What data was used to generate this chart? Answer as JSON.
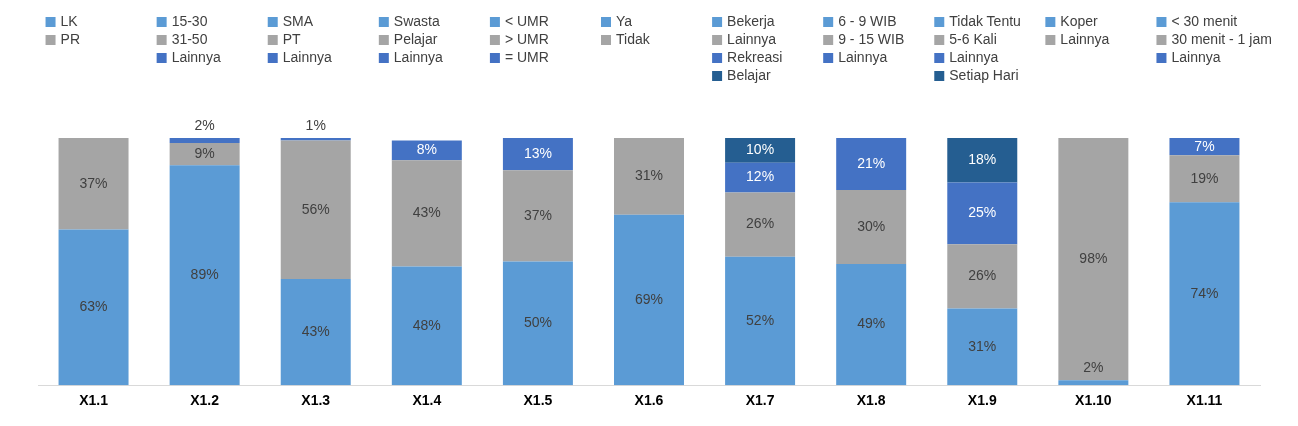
{
  "chart_data": {
    "type": "bar",
    "stacked": true,
    "legend": "top",
    "grid": false,
    "tick_labels": "x",
    "categories": [
      "X1.1",
      "X1.2",
      "X1.3",
      "X1.4",
      "X1.5",
      "X1.6",
      "X1.7",
      "X1.8",
      "X1.9",
      "X1.10",
      "X1.11"
    ],
    "series": [
      {
        "name": "LK",
        "color": "#5b9bd5",
        "values": [
          63,
          null,
          null,
          null,
          null,
          null,
          null,
          null,
          null,
          null,
          null
        ],
        "value_labels": [
          "63%",
          null,
          null,
          null,
          null,
          null,
          null,
          null,
          null,
          null,
          null
        ]
      },
      {
        "name": "PR",
        "color": "#a5a5a5",
        "values": [
          37,
          null,
          null,
          null,
          null,
          null,
          null,
          null,
          null,
          null,
          null
        ],
        "value_labels": [
          "37%",
          null,
          null,
          null,
          null,
          null,
          null,
          null,
          null,
          null,
          null
        ]
      },
      {
        "name": "15-30",
        "color": "#5b9bd5",
        "values": [
          null,
          89,
          null,
          null,
          null,
          null,
          null,
          null,
          null,
          null,
          null
        ],
        "value_labels": [
          null,
          "89%",
          null,
          null,
          null,
          null,
          null,
          null,
          null,
          null,
          null
        ]
      },
      {
        "name": "31-50",
        "color": "#a5a5a5",
        "values": [
          null,
          9,
          null,
          null,
          null,
          null,
          null,
          null,
          null,
          null,
          null
        ],
        "value_labels": [
          null,
          "9%",
          null,
          null,
          null,
          null,
          null,
          null,
          null,
          null,
          null
        ]
      },
      {
        "name": "Lainnya",
        "color": "#4472c4",
        "values": [
          null,
          2,
          null,
          null,
          null,
          null,
          null,
          null,
          null,
          null,
          null
        ],
        "value_labels": [
          null,
          "2%",
          null,
          null,
          null,
          null,
          null,
          null,
          null,
          null,
          null
        ]
      },
      {
        "name": "SMA",
        "color": "#5b9bd5",
        "values": [
          null,
          null,
          43,
          null,
          null,
          null,
          null,
          null,
          null,
          null,
          null
        ],
        "value_labels": [
          null,
          null,
          "43%",
          null,
          null,
          null,
          null,
          null,
          null,
          null,
          null
        ]
      },
      {
        "name": "PT",
        "color": "#a5a5a5",
        "values": [
          null,
          null,
          56,
          null,
          null,
          null,
          null,
          null,
          null,
          null,
          null
        ],
        "value_labels": [
          null,
          null,
          "56%",
          null,
          null,
          null,
          null,
          null,
          null,
          null,
          null
        ]
      },
      {
        "name": "Lainnya",
        "color": "#4472c4",
        "values": [
          null,
          null,
          1,
          null,
          null,
          null,
          null,
          null,
          null,
          null,
          null
        ],
        "value_labels": [
          null,
          null,
          "1%",
          null,
          null,
          null,
          null,
          null,
          null,
          null,
          null
        ]
      },
      {
        "name": "Swasta",
        "color": "#5b9bd5",
        "values": [
          null,
          null,
          null,
          48,
          null,
          null,
          null,
          null,
          null,
          null,
          null
        ],
        "value_labels": [
          null,
          null,
          null,
          "48%",
          null,
          null,
          null,
          null,
          null,
          null,
          null
        ]
      },
      {
        "name": "Pelajar",
        "color": "#a5a5a5",
        "values": [
          null,
          null,
          null,
          43,
          null,
          null,
          null,
          null,
          null,
          null,
          null
        ],
        "value_labels": [
          null,
          null,
          null,
          "43%",
          null,
          null,
          null,
          null,
          null,
          null,
          null
        ]
      },
      {
        "name": "Lainnya",
        "color": "#4472c4",
        "values": [
          null,
          null,
          null,
          8,
          null,
          null,
          null,
          null,
          null,
          null,
          null
        ],
        "value_labels": [
          null,
          null,
          null,
          "8%",
          null,
          null,
          null,
          null,
          null,
          null,
          null
        ]
      },
      {
        "name": "< UMR",
        "color": "#5b9bd5",
        "values": [
          null,
          null,
          null,
          null,
          50,
          null,
          null,
          null,
          null,
          null,
          null
        ],
        "value_labels": [
          null,
          null,
          null,
          null,
          "50%",
          null,
          null,
          null,
          null,
          null,
          null
        ]
      },
      {
        "name": "> UMR",
        "color": "#a5a5a5",
        "values": [
          null,
          null,
          null,
          null,
          37,
          null,
          null,
          null,
          null,
          null,
          null
        ],
        "value_labels": [
          null,
          null,
          null,
          null,
          "37%",
          null,
          null,
          null,
          null,
          null,
          null
        ]
      },
      {
        "name": "= UMR",
        "color": "#4472c4",
        "values": [
          null,
          null,
          null,
          null,
          13,
          null,
          null,
          null,
          null,
          null,
          null
        ],
        "value_labels": [
          null,
          null,
          null,
          null,
          "13%",
          null,
          null,
          null,
          null,
          null,
          null
        ]
      },
      {
        "name": "Ya",
        "color": "#5b9bd5",
        "values": [
          null,
          null,
          null,
          null,
          null,
          69,
          null,
          null,
          null,
          null,
          null
        ],
        "value_labels": [
          null,
          null,
          null,
          null,
          null,
          "69%",
          null,
          null,
          null,
          null,
          null
        ]
      },
      {
        "name": "Tidak",
        "color": "#a5a5a5",
        "values": [
          null,
          null,
          null,
          null,
          null,
          31,
          null,
          null,
          null,
          null,
          null
        ],
        "value_labels": [
          null,
          null,
          null,
          null,
          null,
          "31%",
          null,
          null,
          null,
          null,
          null
        ]
      },
      {
        "name": "Bekerja",
        "color": "#5b9bd5",
        "values": [
          null,
          null,
          null,
          null,
          null,
          null,
          52,
          null,
          null,
          null,
          null
        ],
        "value_labels": [
          null,
          null,
          null,
          null,
          null,
          null,
          "52%",
          null,
          null,
          null,
          null
        ]
      },
      {
        "name": "Lainnya",
        "color": "#a5a5a5",
        "values": [
          null,
          null,
          null,
          null,
          null,
          null,
          26,
          null,
          null,
          null,
          null
        ],
        "value_labels": [
          null,
          null,
          null,
          null,
          null,
          null,
          "26%",
          null,
          null,
          null,
          null
        ]
      },
      {
        "name": "Rekreasi",
        "color": "#4472c4",
        "values": [
          null,
          null,
          null,
          null,
          null,
          null,
          12,
          null,
          null,
          null,
          null
        ],
        "value_labels": [
          null,
          null,
          null,
          null,
          null,
          null,
          "12%",
          null,
          null,
          null,
          null
        ]
      },
      {
        "name": "Belajar",
        "color": "#255e91",
        "values": [
          null,
          null,
          null,
          null,
          null,
          null,
          10,
          null,
          null,
          null,
          null
        ],
        "value_labels": [
          null,
          null,
          null,
          null,
          null,
          null,
          "10%",
          null,
          null,
          null,
          null
        ]
      },
      {
        "name": "6 - 9 WIB",
        "color": "#5b9bd5",
        "values": [
          null,
          null,
          null,
          null,
          null,
          null,
          null,
          49,
          null,
          null,
          null
        ],
        "value_labels": [
          null,
          null,
          null,
          null,
          null,
          null,
          null,
          "49%",
          null,
          null,
          null
        ]
      },
      {
        "name": "9 - 15 WIB",
        "color": "#a5a5a5",
        "values": [
          null,
          null,
          null,
          null,
          null,
          null,
          null,
          30,
          null,
          null,
          null
        ],
        "value_labels": [
          null,
          null,
          null,
          null,
          null,
          null,
          null,
          "30%",
          null,
          null,
          null
        ]
      },
      {
        "name": "Lainnya",
        "color": "#4472c4",
        "values": [
          null,
          null,
          null,
          null,
          null,
          null,
          null,
          21,
          null,
          null,
          null
        ],
        "value_labels": [
          null,
          null,
          null,
          null,
          null,
          null,
          null,
          "21%",
          null,
          null,
          null
        ]
      },
      {
        "name": "Tidak Tentu",
        "color": "#5b9bd5",
        "values": [
          null,
          null,
          null,
          null,
          null,
          null,
          null,
          null,
          31,
          null,
          null
        ],
        "value_labels": [
          null,
          null,
          null,
          null,
          null,
          null,
          null,
          null,
          "31%",
          null,
          null
        ]
      },
      {
        "name": "5-6 Kali",
        "color": "#a5a5a5",
        "values": [
          null,
          null,
          null,
          null,
          null,
          null,
          null,
          null,
          26,
          null,
          null
        ],
        "value_labels": [
          null,
          null,
          null,
          null,
          null,
          null,
          null,
          null,
          "26%",
          null,
          null
        ]
      },
      {
        "name": "Lainnya",
        "color": "#4472c4",
        "values": [
          null,
          null,
          null,
          null,
          null,
          null,
          null,
          null,
          25,
          null,
          null
        ],
        "value_labels": [
          null,
          null,
          null,
          null,
          null,
          null,
          null,
          null,
          "25%",
          null,
          null
        ]
      },
      {
        "name": "Setiap Hari",
        "color": "#255e91",
        "values": [
          null,
          null,
          null,
          null,
          null,
          null,
          null,
          null,
          18,
          null,
          null
        ],
        "value_labels": [
          null,
          null,
          null,
          null,
          null,
          null,
          null,
          null,
          "18%",
          null,
          null
        ]
      },
      {
        "name": "Koper",
        "color": "#5b9bd5",
        "values": [
          null,
          null,
          null,
          null,
          null,
          null,
          null,
          null,
          null,
          2,
          null
        ],
        "value_labels": [
          null,
          null,
          null,
          null,
          null,
          null,
          null,
          null,
          null,
          "2%",
          null
        ]
      },
      {
        "name": "Lainnya",
        "color": "#a5a5a5",
        "values": [
          null,
          null,
          null,
          null,
          null,
          null,
          null,
          null,
          null,
          98,
          null
        ],
        "value_labels": [
          null,
          null,
          null,
          null,
          null,
          null,
          null,
          null,
          null,
          "98%",
          null
        ]
      },
      {
        "name": "< 30 menit",
        "color": "#5b9bd5",
        "values": [
          null,
          null,
          null,
          null,
          null,
          null,
          null,
          null,
          null,
          null,
          74
        ],
        "value_labels": [
          null,
          null,
          null,
          null,
          null,
          null,
          null,
          null,
          null,
          null,
          "74%"
        ]
      },
      {
        "name": "30 menit - 1 jam",
        "color": "#a5a5a5",
        "values": [
          null,
          null,
          null,
          null,
          null,
          null,
          null,
          null,
          null,
          null,
          19
        ],
        "value_labels": [
          null,
          null,
          null,
          null,
          null,
          null,
          null,
          null,
          null,
          null,
          "19%"
        ]
      },
      {
        "name": "Lainnya",
        "color": "#4472c4",
        "values": [
          null,
          null,
          null,
          null,
          null,
          null,
          null,
          null,
          null,
          null,
          7
        ],
        "value_labels": [
          null,
          null,
          null,
          null,
          null,
          null,
          null,
          null,
          null,
          null,
          "7%"
        ]
      }
    ]
  }
}
